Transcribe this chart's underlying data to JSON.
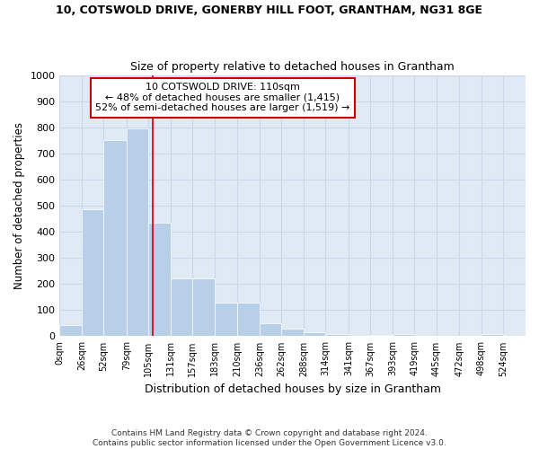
{
  "title": "10, COTSWOLD DRIVE, GONERBY HILL FOOT, GRANTHAM, NG31 8GE",
  "subtitle": "Size of property relative to detached houses in Grantham",
  "xlabel": "Distribution of detached houses by size in Grantham",
  "ylabel": "Number of detached properties",
  "footer_line1": "Contains HM Land Registry data © Crown copyright and database right 2024.",
  "footer_line2": "Contains public sector information licensed under the Open Government Licence v3.0.",
  "annotation_line1": "10 COTSWOLD DRIVE: 110sqm",
  "annotation_line2": "← 48% of detached houses are smaller (1,415)",
  "annotation_line3": "52% of semi-detached houses are larger (1,519) →",
  "bar_color": "#b8cfe8",
  "grid_color": "#c8d8ea",
  "bg_color": "#e0eaf5",
  "property_line_x": 110,
  "bin_edges": [
    0,
    26,
    52,
    79,
    105,
    131,
    157,
    183,
    210,
    236,
    262,
    288,
    314,
    341,
    367,
    393,
    419,
    445,
    472,
    498,
    524,
    550
  ],
  "bar_heights": [
    42,
    485,
    750,
    795,
    435,
    220,
    220,
    128,
    128,
    50,
    28,
    15,
    10,
    0,
    5,
    10,
    0,
    0,
    0,
    10,
    0
  ],
  "x_tick_labels": [
    "0sqm",
    "26sqm",
    "52sqm",
    "79sqm",
    "105sqm",
    "131sqm",
    "157sqm",
    "183sqm",
    "210sqm",
    "236sqm",
    "262sqm",
    "288sqm",
    "314sqm",
    "341sqm",
    "367sqm",
    "393sqm",
    "419sqm",
    "445sqm",
    "472sqm",
    "498sqm",
    "524sqm"
  ],
  "ylim": [
    0,
    1000
  ],
  "yticks": [
    0,
    100,
    200,
    300,
    400,
    500,
    600,
    700,
    800,
    900,
    1000
  ]
}
